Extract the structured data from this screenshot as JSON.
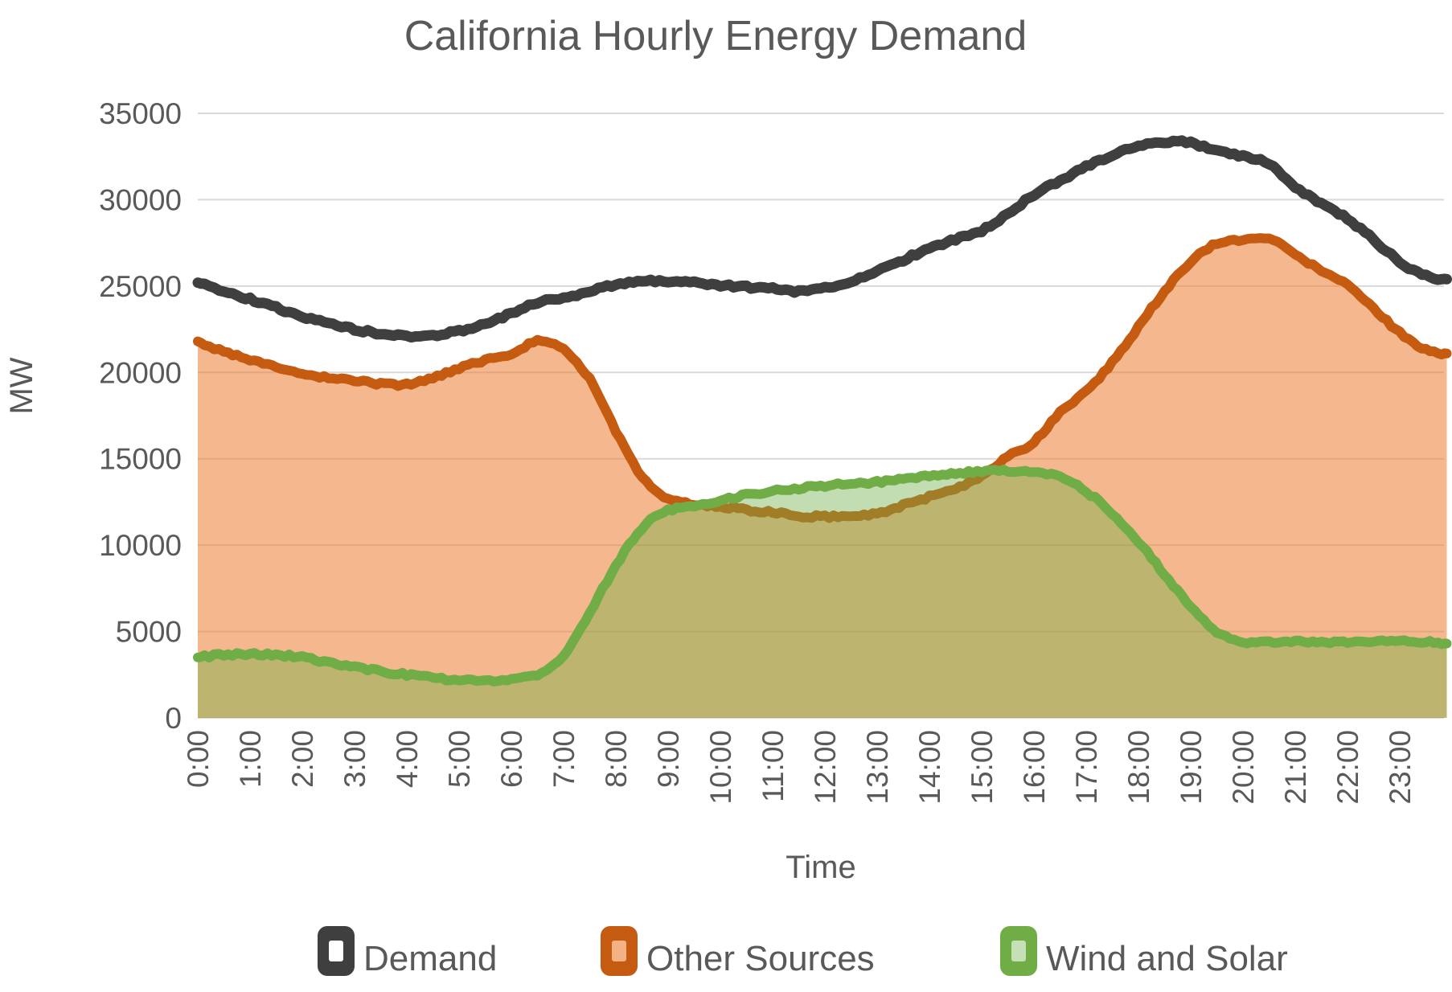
{
  "title": "California Hourly Energy Demand",
  "axes": {
    "x_title": "Time",
    "y_title": "MW",
    "y_tick_labels": [
      "0",
      "5000",
      "10000",
      "15000",
      "20000",
      "25000",
      "30000",
      "35000"
    ],
    "x_tick_labels": [
      "0:00",
      "1:00",
      "2:00",
      "3:00",
      "4:00",
      "5:00",
      "6:00",
      "7:00",
      "8:00",
      "9:00",
      "10:00",
      "11:00",
      "12:00",
      "13:00",
      "14:00",
      "15:00",
      "16:00",
      "17:00",
      "18:00",
      "19:00",
      "20:00",
      "21:00",
      "22:00",
      "23:00"
    ]
  },
  "legend": {
    "position": "bottom",
    "items": [
      {
        "label": "Demand",
        "line_color": "#3F3F3F",
        "key_fill": "#FFFFFF"
      },
      {
        "label": "Other Sources",
        "line_color": "#C55A11",
        "key_fill": "#F4B183"
      },
      {
        "label": "Wind and Solar",
        "line_color": "#70AD47",
        "key_fill": "#C5E0B4"
      }
    ]
  },
  "colors": {
    "gridline": "#D9D9D9",
    "text": "#595959",
    "background": "#FFFFFF"
  },
  "chart_data": {
    "type": "area",
    "title": "California Hourly Energy Demand",
    "xlabel": "Time",
    "ylabel": "MW",
    "ylim": [
      0,
      35000
    ],
    "ytick_step": 5000,
    "yticks": [
      0,
      5000,
      10000,
      15000,
      20000,
      25000,
      30000,
      35000
    ],
    "grid": true,
    "legend_position": "bottom",
    "categories": [
      "0:00",
      "1:00",
      "2:00",
      "3:00",
      "4:00",
      "5:00",
      "6:00",
      "7:00",
      "8:00",
      "9:00",
      "10:00",
      "11:00",
      "12:00",
      "13:00",
      "14:00",
      "15:00",
      "16:00",
      "17:00",
      "18:00",
      "19:00",
      "20:00",
      "21:00",
      "22:00",
      "23:00"
    ],
    "x_hours": [
      0,
      0.5,
      1,
      1.5,
      2,
      2.5,
      3,
      3.5,
      4,
      4.5,
      5,
      5.5,
      6,
      6.5,
      7,
      7.5,
      8,
      8.5,
      9,
      9.5,
      10,
      10.5,
      11,
      11.5,
      12,
      12.5,
      13,
      13.5,
      14,
      14.5,
      15,
      15.5,
      16,
      16.5,
      17,
      17.5,
      18,
      18.5,
      19,
      19.5,
      20,
      20.5,
      21,
      21.5,
      22,
      22.5,
      23,
      23.5,
      23.9
    ],
    "series": [
      {
        "name": "Demand",
        "kind": "line",
        "color": "#3F3F3F",
        "fill": "none",
        "values": [
          25200,
          24700,
          24250,
          23750,
          23250,
          22850,
          22500,
          22250,
          22100,
          22150,
          22400,
          22850,
          23400,
          24050,
          24300,
          24700,
          25100,
          25300,
          25250,
          25200,
          25050,
          24950,
          24850,
          24700,
          24900,
          25300,
          25900,
          26500,
          27200,
          27700,
          28200,
          29200,
          30300,
          31100,
          31900,
          32600,
          33100,
          33300,
          33300,
          32800,
          32500,
          32100,
          30700,
          29800,
          28900,
          27700,
          26400,
          25600,
          25400
        ]
      },
      {
        "name": "Other Sources",
        "kind": "area",
        "color": "#C55A11",
        "fill": "rgba(237,125,49,0.55)",
        "values": [
          21800,
          21200,
          20750,
          20300,
          19950,
          19700,
          19500,
          19350,
          19300,
          19700,
          20250,
          20700,
          21100,
          21800,
          21300,
          19600,
          16600,
          14000,
          12700,
          12350,
          12250,
          12050,
          11900,
          11700,
          11650,
          11700,
          11850,
          12300,
          12800,
          13250,
          14000,
          15100,
          16000,
          17700,
          18900,
          20600,
          22650,
          24700,
          26400,
          27480,
          27670,
          27720,
          26880,
          25850,
          25100,
          23700,
          22300,
          21300,
          21100
        ]
      },
      {
        "name": "Wind and Solar",
        "kind": "area",
        "color": "#70AD47",
        "fill": "rgba(112,173,71,0.42)",
        "values": [
          3500,
          3650,
          3700,
          3650,
          3500,
          3200,
          2950,
          2700,
          2500,
          2300,
          2200,
          2150,
          2250,
          2500,
          3600,
          6100,
          8800,
          11000,
          12000,
          12300,
          12600,
          12900,
          13150,
          13300,
          13450,
          13550,
          13650,
          13800,
          14000,
          14150,
          14280,
          14300,
          14200,
          13950,
          13100,
          11850,
          10200,
          8300,
          6500,
          5000,
          4400,
          4350,
          4450,
          4400,
          4350,
          4400,
          4450,
          4400,
          4300
        ]
      }
    ]
  }
}
